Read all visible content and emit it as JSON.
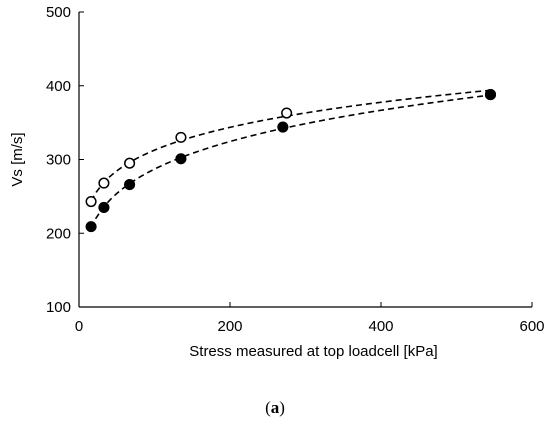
{
  "chart_data": {
    "type": "scatter",
    "title": "",
    "xlabel": "Stress measured at top loadcell [kPa]",
    "ylabel": "Vs [m/s]",
    "xlim": [
      0,
      600
    ],
    "ylim": [
      100,
      500
    ],
    "xticks": [
      "0",
      "200",
      "400",
      "600"
    ],
    "yticks": [
      "100",
      "200",
      "300",
      "400",
      "500"
    ],
    "grid": false,
    "legend": "none",
    "series": [
      {
        "marker": "open-circle",
        "line": "dashed",
        "x": [
          16,
          33,
          67,
          135,
          275,
          545
        ],
        "y": [
          243,
          268,
          295,
          330,
          363,
          388
        ]
      },
      {
        "marker": "filled-circle",
        "line": "dashed",
        "x": [
          16,
          33,
          67,
          135,
          270,
          545
        ],
        "y": [
          209,
          235,
          266,
          301,
          344,
          388
        ]
      }
    ]
  },
  "caption": {
    "open": "(",
    "letter": "a",
    "close": ")"
  }
}
